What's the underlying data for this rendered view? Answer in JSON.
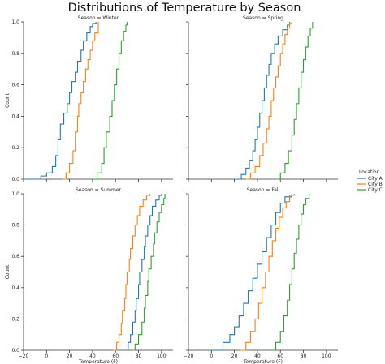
{
  "title": "Distributions of Temperature by Season",
  "colors": {
    "City A": "#1f77b4",
    "City B": "#ff7f0e",
    "City C": "#2ca02c",
    "axis": "#333333"
  },
  "legend": {
    "title": "Location",
    "placement": "center-right"
  },
  "chart_data": [
    {
      "type": "line",
      "title": "Season = Winter",
      "xlabel": "",
      "ylabel": "Count",
      "xlim": [
        -20,
        110
      ],
      "ylim": [
        0,
        1.0
      ],
      "xticks": [],
      "yticks": [
        "0.0",
        "0.2",
        "0.4",
        "0.6",
        "0.8",
        "1.0"
      ],
      "series": [
        {
          "name": "City A",
          "x": [
            -18,
            -5,
            0,
            5,
            8,
            10,
            12,
            15,
            18,
            20,
            22,
            25,
            27,
            30,
            32,
            35,
            38,
            40,
            43
          ],
          "y": [
            0,
            0.02,
            0.04,
            0.08,
            0.15,
            0.25,
            0.35,
            0.42,
            0.48,
            0.55,
            0.62,
            0.68,
            0.75,
            0.82,
            0.88,
            0.93,
            0.97,
            0.99,
            1.0
          ]
        },
        {
          "name": "City B",
          "x": [
            14,
            17,
            20,
            23,
            25,
            27,
            28,
            30,
            32,
            34,
            36,
            38,
            40,
            42,
            45
          ],
          "y": [
            0,
            0.04,
            0.1,
            0.18,
            0.3,
            0.4,
            0.48,
            0.55,
            0.62,
            0.7,
            0.76,
            0.82,
            0.88,
            0.93,
            1.0
          ]
        },
        {
          "name": "City C",
          "x": [
            40,
            44,
            48,
            50,
            52,
            55,
            57,
            59,
            61,
            63,
            65,
            67,
            69,
            70
          ],
          "y": [
            0,
            0.04,
            0.1,
            0.2,
            0.3,
            0.4,
            0.5,
            0.6,
            0.7,
            0.8,
            0.88,
            0.94,
            0.98,
            1.0
          ]
        }
      ]
    },
    {
      "type": "line",
      "title": "Season = Spring",
      "xlabel": "",
      "ylabel": "",
      "xlim": [
        -20,
        110
      ],
      "ylim": [
        0,
        1.0
      ],
      "xticks": [],
      "yticks": [],
      "series": [
        {
          "name": "City A",
          "x": [
            22,
            26,
            30,
            33,
            36,
            38,
            40,
            42,
            44,
            46,
            48,
            50,
            52,
            55,
            58,
            62,
            66,
            68
          ],
          "y": [
            0,
            0.03,
            0.07,
            0.12,
            0.18,
            0.25,
            0.33,
            0.42,
            0.5,
            0.58,
            0.66,
            0.73,
            0.8,
            0.86,
            0.91,
            0.95,
            0.98,
            1.0
          ]
        },
        {
          "name": "City B",
          "x": [
            30,
            34,
            38,
            42,
            45,
            48,
            50,
            52,
            54,
            56,
            58,
            60,
            62,
            64,
            66,
            68,
            70
          ],
          "y": [
            0,
            0.04,
            0.08,
            0.15,
            0.23,
            0.32,
            0.4,
            0.5,
            0.58,
            0.65,
            0.72,
            0.8,
            0.86,
            0.92,
            0.96,
            0.99,
            1.0
          ]
        },
        {
          "name": "City C",
          "x": [
            55,
            60,
            64,
            67,
            70,
            72,
            74,
            76,
            78,
            80,
            82,
            84,
            86,
            88
          ],
          "y": [
            0,
            0.04,
            0.1,
            0.18,
            0.28,
            0.38,
            0.48,
            0.58,
            0.68,
            0.76,
            0.84,
            0.91,
            0.96,
            1.0
          ]
        }
      ]
    },
    {
      "type": "line",
      "title": "Season = Summer",
      "xlabel": "Temperature (F)",
      "ylabel": "Count",
      "xlim": [
        -20,
        110
      ],
      "ylim": [
        0,
        1.0
      ],
      "xticks": [
        "−20",
        "0",
        "20",
        "40",
        "60",
        "80",
        "100"
      ],
      "yticks": [
        "0.0",
        "0.2",
        "0.4",
        "0.6",
        "0.8",
        "1.0"
      ],
      "series": [
        {
          "name": "City A",
          "x": [
            68,
            71,
            73,
            75,
            77,
            78,
            80,
            81,
            83,
            85,
            86,
            88,
            90,
            92,
            95,
            98,
            100
          ],
          "y": [
            0,
            0.05,
            0.1,
            0.18,
            0.25,
            0.33,
            0.42,
            0.5,
            0.58,
            0.66,
            0.73,
            0.8,
            0.86,
            0.92,
            0.96,
            0.99,
            1.0
          ]
        },
        {
          "name": "City B",
          "x": [
            58,
            61,
            63,
            65,
            66,
            68,
            69,
            70,
            72,
            73,
            75,
            77,
            79,
            81,
            84,
            87,
            90
          ],
          "y": [
            0,
            0.05,
            0.1,
            0.17,
            0.25,
            0.33,
            0.42,
            0.5,
            0.58,
            0.65,
            0.73,
            0.8,
            0.86,
            0.92,
            0.96,
            0.99,
            1.0
          ]
        },
        {
          "name": "City C",
          "x": [
            74,
            77,
            80,
            83,
            85,
            86,
            88,
            89,
            91,
            93,
            94,
            96,
            98,
            100,
            102,
            103
          ],
          "y": [
            0,
            0.04,
            0.1,
            0.18,
            0.27,
            0.35,
            0.44,
            0.52,
            0.6,
            0.68,
            0.75,
            0.82,
            0.88,
            0.93,
            0.97,
            1.0
          ]
        }
      ]
    },
    {
      "type": "line",
      "title": "Season = Fall",
      "xlabel": "Temperature (F)",
      "ylabel": "",
      "xlim": [
        -20,
        110
      ],
      "ylim": [
        0,
        1.0
      ],
      "xticks": [
        "−20",
        "0",
        "20",
        "40",
        "60",
        "80",
        "100"
      ],
      "yticks": [],
      "series": [
        {
          "name": "City A",
          "x": [
            0,
            10,
            16,
            20,
            24,
            28,
            32,
            36,
            40,
            44,
            48,
            52,
            56,
            60,
            64,
            70
          ],
          "y": [
            0,
            0.05,
            0.1,
            0.15,
            0.22,
            0.3,
            0.38,
            0.46,
            0.55,
            0.63,
            0.72,
            0.8,
            0.88,
            0.94,
            0.98,
            1.0
          ]
        },
        {
          "name": "City B",
          "x": [
            25,
            30,
            34,
            38,
            41,
            44,
            47,
            50,
            53,
            56,
            59,
            62,
            65,
            68,
            72
          ],
          "y": [
            0,
            0.05,
            0.12,
            0.2,
            0.3,
            0.4,
            0.5,
            0.6,
            0.7,
            0.78,
            0.85,
            0.91,
            0.95,
            0.99,
            1.0
          ]
        },
        {
          "name": "City C",
          "x": [
            52,
            56,
            60,
            63,
            66,
            68,
            70,
            72,
            74,
            76,
            78,
            80,
            82,
            85
          ],
          "y": [
            0,
            0.05,
            0.12,
            0.22,
            0.32,
            0.42,
            0.52,
            0.62,
            0.71,
            0.8,
            0.87,
            0.93,
            0.97,
            1.0
          ]
        }
      ]
    }
  ]
}
